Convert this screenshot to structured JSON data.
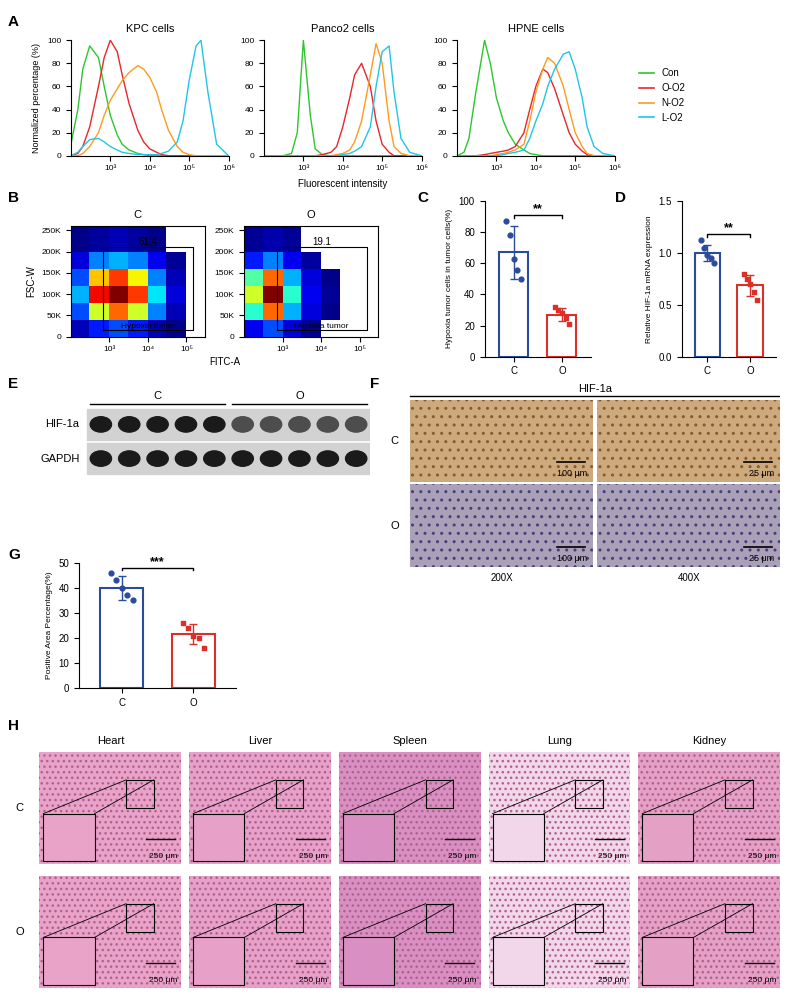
{
  "chart_data": [
    {
      "panel": "A",
      "type": "line",
      "x_label": "Fluorescent intensity",
      "y_label": "Normalized percentage (%)",
      "log": "x",
      "xlim": [
        100,
        1000000
      ],
      "xticks": [
        {
          "value": 1000,
          "label": "10³"
        },
        {
          "value": 10000,
          "label": "10⁴"
        },
        {
          "value": 100000,
          "label": "10⁵"
        },
        {
          "value": 1000000,
          "label": "10⁶"
        }
      ],
      "ylim": [
        0,
        100
      ],
      "yticks": [
        0,
        20,
        40,
        60,
        80,
        100
      ],
      "legend": "right",
      "x": [
        100,
        150,
        200,
        300,
        500,
        700,
        1000,
        1500,
        2000,
        3000,
        5000,
        7000,
        10000,
        15000,
        20000,
        30000,
        50000,
        70000,
        100000,
        150000,
        200000,
        300000,
        500000,
        1000000
      ],
      "series": [
        {
          "name": "Con",
          "color": "#2fc52f"
        },
        {
          "name": "O-O2",
          "color": "#e8262b"
        },
        {
          "name": "N-O2",
          "color": "#ff9a1f"
        },
        {
          "name": "L-O2",
          "color": "#22c5e6"
        }
      ],
      "subplots": [
        {
          "title": "KPC cells",
          "values": [
            [
              10,
              40,
              75,
              95,
              85,
              60,
              35,
              18,
              10,
              5,
              2,
              1,
              0,
              0,
              0,
              0,
              0,
              0,
              0,
              0,
              0,
              0,
              0,
              0
            ],
            [
              0,
              2,
              8,
              25,
              60,
              85,
              100,
              90,
              70,
              45,
              22,
              12,
              6,
              3,
              1,
              0,
              0,
              0,
              0,
              0,
              0,
              0,
              0,
              0
            ],
            [
              0,
              0,
              2,
              8,
              20,
              35,
              48,
              58,
              65,
              72,
              78,
              75,
              68,
              55,
              40,
              22,
              8,
              3,
              1,
              0,
              0,
              0,
              0,
              0
            ],
            [
              0,
              3,
              8,
              14,
              15,
              12,
              8,
              5,
              3,
              2,
              1,
              1,
              1,
              1,
              2,
              4,
              12,
              30,
              65,
              95,
              100,
              55,
              10,
              0
            ]
          ]
        },
        {
          "title": "Panco2 cells",
          "values": [
            [
              0,
              0,
              0,
              0,
              2,
              20,
              100,
              35,
              6,
              1,
              0,
              0,
              0,
              0,
              0,
              0,
              0,
              0,
              0,
              0,
              0,
              0,
              0,
              0
            ],
            [
              0,
              0,
              0,
              0,
              0,
              0,
              0,
              0,
              0,
              1,
              3,
              8,
              25,
              50,
              70,
              80,
              60,
              30,
              10,
              3,
              0,
              0,
              0,
              0
            ],
            [
              0,
              0,
              0,
              0,
              0,
              0,
              0,
              0,
              0,
              0,
              0,
              1,
              2,
              5,
              12,
              30,
              70,
              97,
              80,
              30,
              8,
              2,
              0,
              0
            ],
            [
              0,
              0,
              0,
              0,
              0,
              0,
              0,
              0,
              0,
              0,
              0,
              0,
              1,
              2,
              4,
              8,
              25,
              60,
              90,
              95,
              55,
              15,
              3,
              0
            ]
          ]
        },
        {
          "title": "HPNE cells",
          "values": [
            [
              0,
              3,
              15,
              55,
              100,
              80,
              50,
              30,
              20,
              10,
              5,
              2,
              1,
              0,
              0,
              0,
              0,
              0,
              0,
              0,
              0,
              0,
              0,
              0
            ],
            [
              0,
              0,
              0,
              0,
              1,
              2,
              3,
              4,
              5,
              8,
              20,
              40,
              60,
              75,
              72,
              58,
              35,
              20,
              10,
              4,
              1,
              0,
              0,
              0
            ],
            [
              0,
              0,
              0,
              0,
              0,
              0,
              1,
              2,
              3,
              5,
              10,
              30,
              55,
              75,
              85,
              80,
              60,
              40,
              20,
              8,
              2,
              0,
              0,
              0
            ],
            [
              0,
              0,
              0,
              0,
              0,
              0,
              0,
              1,
              2,
              3,
              5,
              15,
              30,
              45,
              60,
              75,
              88,
              90,
              75,
              50,
              25,
              8,
              2,
              0
            ]
          ]
        }
      ]
    },
    {
      "panel": "B",
      "type": "heatmap",
      "x_label": "FITC-A",
      "y_label": "FSC-W",
      "log": "x",
      "xlim": [
        100,
        300000
      ],
      "xticks": [
        {
          "value": 1000,
          "label": "10³"
        },
        {
          "value": 10000,
          "label": "10⁴"
        },
        {
          "value": 100000,
          "label": "10⁵"
        }
      ],
      "ylim": [
        0,
        260000
      ],
      "yticks": [
        0,
        {
          "value": 50000,
          "label": "50K"
        },
        {
          "value": 100000,
          "label": "100K"
        },
        {
          "value": 150000,
          "label": "150K"
        },
        {
          "value": 200000,
          "label": "200K"
        },
        {
          "value": 250000,
          "label": "250K"
        }
      ],
      "x_bins": [
        100,
        300,
        1000,
        3000,
        10000,
        30000,
        100000,
        300000
      ],
      "y_bins": [
        0,
        40000,
        80000,
        120000,
        160000,
        200000,
        260000
      ],
      "gate_label": "Hypoxia tumor",
      "gate_x": [
        700,
        150000
      ],
      "gate_y": [
        15000,
        210000
      ],
      "subplots": [
        {
          "title": "C",
          "gate_value": 61.4,
          "cells": [
            [
              5,
              15,
              20,
              15,
              5,
              1,
              0
            ],
            [
              20,
              60,
              80,
              60,
              25,
              5,
              0
            ],
            [
              30,
              90,
              100,
              85,
              35,
              8,
              0
            ],
            [
              20,
              70,
              85,
              65,
              25,
              5,
              0
            ],
            [
              8,
              25,
              30,
              25,
              10,
              2,
              0
            ],
            [
              1,
              3,
              5,
              3,
              1,
              0,
              0
            ]
          ]
        },
        {
          "title": "O",
          "gate_value": 19.1,
          "cells": [
            [
              10,
              20,
              8,
              2,
              0,
              0,
              0
            ],
            [
              40,
              80,
              30,
              8,
              1,
              0,
              0
            ],
            [
              60,
              100,
              40,
              10,
              2,
              0,
              0
            ],
            [
              45,
              80,
              30,
              8,
              1,
              0,
              0
            ],
            [
              15,
              25,
              10,
              3,
              0,
              0,
              0
            ],
            [
              2,
              4,
              2,
              0,
              0,
              0,
              0
            ]
          ]
        }
      ]
    },
    {
      "panel": "C",
      "type": "bar",
      "y_label": "Hypoxia tumor cells in tumor cells(%)",
      "categories": [
        "C",
        "O"
      ],
      "values": [
        67,
        27
      ],
      "errors": [
        17,
        4
      ],
      "points": [
        [
          87,
          78,
          63,
          56,
          50
        ],
        [
          32,
          30,
          28,
          25,
          21
        ]
      ],
      "colors": [
        "#2b4c9b",
        "#d9302a"
      ],
      "significance": "**",
      "ylim": [
        0,
        100
      ],
      "yticks": [
        0,
        20,
        40,
        60,
        80,
        100
      ]
    },
    {
      "panel": "D",
      "type": "bar",
      "y_label": "Relative HIF-1a mRNA expression",
      "categories": [
        "C",
        "O"
      ],
      "values": [
        1.0,
        0.69
      ],
      "errors": [
        0.08,
        0.1
      ],
      "points": [
        [
          1.12,
          1.05,
          0.98,
          0.95,
          0.9
        ],
        [
          0.8,
          0.75,
          0.7,
          0.62,
          0.55
        ]
      ],
      "colors": [
        "#2b4c9b",
        "#d9302a"
      ],
      "significance": "**",
      "ylim": [
        0,
        1.5
      ],
      "yticks": [
        {
          "value": 0,
          "label": "0.0"
        },
        0.5,
        {
          "value": 1,
          "label": "1.0"
        },
        1.5
      ]
    },
    {
      "panel": "G",
      "type": "bar",
      "y_label": "Positive Area Percentage(%)",
      "categories": [
        "C",
        "O"
      ],
      "values": [
        40,
        21.6
      ],
      "errors": [
        4.8,
        4.0
      ],
      "points": [
        [
          46,
          43,
          40,
          37,
          35
        ],
        [
          26,
          24,
          21,
          20,
          16
        ]
      ],
      "colors": [
        "#2b4c9b",
        "#d9302a"
      ],
      "significance": "***",
      "ylim": [
        0,
        50
      ],
      "yticks": [
        0,
        10,
        20,
        30,
        40,
        50
      ]
    }
  ],
  "blot": {
    "panel": "E",
    "rows": [
      "HIF-1a",
      "GAPDH"
    ],
    "groups": [
      "C",
      "O"
    ]
  },
  "ihc": {
    "panel": "F",
    "title": "HIF-1a",
    "rows": [
      "C",
      "O"
    ],
    "columns": [
      "200X",
      "400X"
    ],
    "scale_bars": [
      "100 μm",
      "25 μm"
    ]
  },
  "he": {
    "panel": "H",
    "rows": [
      "C",
      "O"
    ],
    "columns": [
      "Heart",
      "Liver",
      "Spleen",
      "Lung",
      "Kidney"
    ],
    "scale_bar": "250 μm"
  }
}
